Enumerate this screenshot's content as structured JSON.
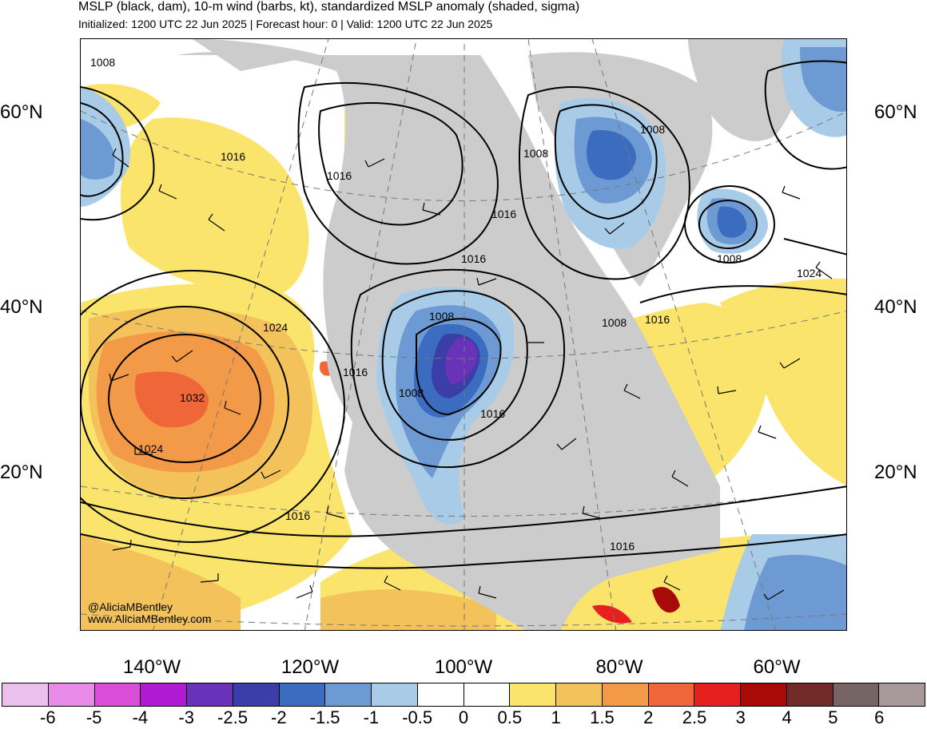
{
  "header": {
    "title": "MSLP (black, dam), 10-m wind (barbs, kt), standardized MSLP anomaly (shaded, sigma)",
    "subtitle": "Initialized: 1200 UTC 22 Jun 2025 | Forecast hour: 0 | Valid: 1200 UTC 22 Jun 2025"
  },
  "axes": {
    "lat_left": [
      "60°N",
      "40°N",
      "20°N"
    ],
    "lat_right": [
      "60°N",
      "40°N",
      "20°N"
    ],
    "lon": [
      "140°W",
      "120°W",
      "100°W",
      "80°W",
      "60°W"
    ]
  },
  "isobar_labels": [
    "1008",
    "1016",
    "1016",
    "1008",
    "1008",
    "1016",
    "1016",
    "1008",
    "1024",
    "1008",
    "1024",
    "1016",
    "1008",
    "1016",
    "1008",
    "1016",
    "1032",
    "1024",
    "1016",
    "1016"
  ],
  "credits": {
    "handle": "@AliciaMBentley",
    "site": "www.AliciaMBentley.com"
  },
  "colorbar": {
    "colors": [
      "#ecc0ec",
      "#e88ae8",
      "#d84ed8",
      "#b01ad0",
      "#6a32b8",
      "#3c3ea8",
      "#3b6cc0",
      "#6e9ad4",
      "#a8cce8",
      "#ffffff",
      "#ffffff",
      "#fbe46c",
      "#f4c25a",
      "#f39a48",
      "#ef6638",
      "#e61f1f",
      "#a80a0a",
      "#722a28",
      "#776565",
      "#a89a9a"
    ],
    "labels": [
      "-6",
      "-5",
      "-4",
      "-3",
      "-2.5",
      "-2",
      "-1.5",
      "-1",
      "-0.5",
      "0",
      "0.5",
      "1",
      "1.5",
      "2",
      "2.5",
      "3",
      "4",
      "5",
      "6"
    ]
  },
  "colors": {
    "land": "#cccccc",
    "positive_1": "#fbe46c",
    "positive_2": "#f4c25a",
    "positive_3": "#f39a48",
    "positive_4": "#ef6638",
    "negative_1": "#a8cce8",
    "negative_2": "#6e9ad4",
    "negative_3": "#3b6cc0",
    "negative_4": "#3c3ea8",
    "negative_5": "#6a32b8"
  }
}
